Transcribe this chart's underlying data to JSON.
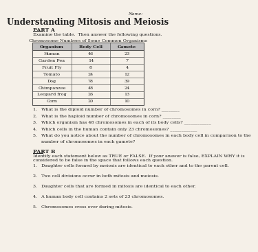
{
  "title": "Understanding Mitosis and Meiosis",
  "name_label": "Name:",
  "part_a_header": "PART A",
  "part_a_intro": "Examine the table.  Then answer the following questions.",
  "table_title": "Chromosome Numbers of Some Common Organisms",
  "table_headers": [
    "Organism",
    "Body Cell",
    "Gamete"
  ],
  "table_data": [
    [
      "Human",
      "46",
      "23"
    ],
    [
      "Garden Pea",
      "14",
      "7"
    ],
    [
      "Fruit Fly",
      "8",
      "4"
    ],
    [
      "Tomato",
      "24",
      "12"
    ],
    [
      "Dog",
      "78",
      "39"
    ],
    [
      "Chimpanzee",
      "48",
      "24"
    ],
    [
      "Leopard frog",
      "26",
      "13"
    ],
    [
      "Corn",
      "20",
      "10"
    ]
  ],
  "part_a_questions": [
    "1.   What is the diploid number of chromosomes in corn? ________",
    "2.   What is the haploid number of chromosomes in corn? ________",
    "3.   Which organism has 48 chromosomes in each of its body cells? ____________",
    "4.   Which cells in the human contain only 23 chromosomes? ____________",
    "5.   What do you notice about the number of chromosomes in each body cell in comparison to the",
    "      number of chromosomes in each gamete?"
  ],
  "part_b_header": "PART B",
  "part_b_intro_1": "Identify each statement below as TRUE or FALSE.  If your answer is false, EXPLAIN WHY it is",
  "part_b_intro_2": "considered to be false in the space that follows each question.",
  "part_b_questions": [
    "1.   Daughter cells formed by meiosis are identical to each other and to the parent cell.",
    "2.   Two cell divisions occur in both mitosis and meiosis.",
    "3.   Daughter cells that are formed in mitosis are identical to each other.",
    "4.   A human body cell contains 2 sets of 23 chromosomes.",
    "5.   Chromosomes cross over during mitosis."
  ],
  "bg_color": "#f5f0e8",
  "table_header_bg": "#c0bfbf",
  "table_border": "#555555",
  "text_color": "#222222",
  "title_fontsize": 8.5,
  "body_fontsize": 5.5,
  "small_fontsize": 4.6
}
